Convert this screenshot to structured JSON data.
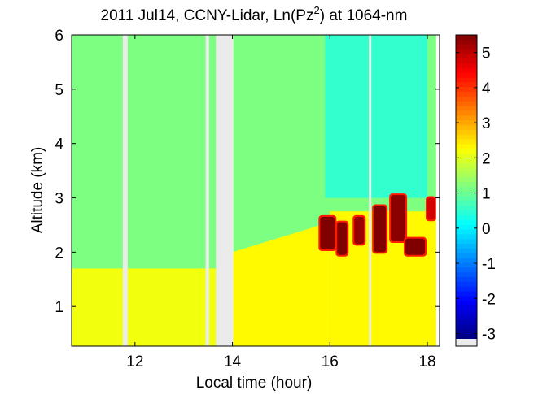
{
  "chart_data": {
    "type": "heatmap",
    "title": {
      "prefix": "2011 Jul14, CCNY-Lidar, Ln(Pz",
      "superscript": "2",
      "suffix": ") at 1064-nm"
    },
    "xlabel": "Local time (hour)",
    "ylabel": "Altitude (km)",
    "xlim": [
      10.7,
      18.25
    ],
    "ylim": [
      0.27,
      6.0
    ],
    "x_ticks": [
      "12",
      "14",
      "16",
      "18"
    ],
    "x_tick_values": [
      12,
      14,
      16,
      18
    ],
    "y_ticks": [
      "1",
      "2",
      "3",
      "4",
      "5",
      "6"
    ],
    "y_tick_values": [
      1,
      2,
      3,
      4,
      5,
      6
    ],
    "colorbar": {
      "colormap": "jet",
      "min": -3.15,
      "max": 5.5,
      "ticks": [
        "5",
        "4",
        "3",
        "2",
        "1",
        "0",
        "-1",
        "-2",
        "-3"
      ],
      "tick_values": [
        5,
        4,
        3,
        2,
        1,
        0,
        -1,
        -2,
        -3
      ],
      "missing_color": "#ebebeb"
    },
    "missing_data_intervals": [
      [
        11.75,
        11.85
      ],
      [
        13.45,
        13.52
      ],
      [
        13.66,
        14.02
      ],
      [
        16.8,
        16.85
      ]
    ],
    "data_end_hour": 18.18,
    "background_value": 1.15,
    "layers": [
      {
        "name": "near-surface",
        "alt_bottom": 0.27,
        "alt_top": 0.75,
        "value": 2.7
      },
      {
        "name": "boundary-layer-early",
        "x_range": [
          10.7,
          14.0
        ],
        "alt_top": 1.7,
        "value": 2.15
      },
      {
        "name": "boundary-layer-growing",
        "x_range": [
          14.0,
          16.0
        ],
        "alt_top_start": 2.0,
        "alt_top_end": 2.55,
        "value": 2.3
      },
      {
        "name": "boundary-layer-late",
        "x_range": [
          16.0,
          18.18
        ],
        "alt_top": 2.75,
        "value": 2.3
      },
      {
        "name": "clear-air-noise",
        "x_range": [
          15.9,
          18.0
        ],
        "alt_bottom": 3.0,
        "alt_top": 6.0,
        "value": 0.4
      }
    ],
    "cloud_patches": [
      {
        "x_range": [
          15.8,
          16.1
        ],
        "alt_range": [
          2.05,
          2.65
        ],
        "value": 5.5
      },
      {
        "x_range": [
          16.15,
          16.35
        ],
        "alt_range": [
          1.95,
          2.55
        ],
        "value": 5.5
      },
      {
        "x_range": [
          16.5,
          16.7
        ],
        "alt_range": [
          2.15,
          2.65
        ],
        "value": 5.3
      },
      {
        "x_range": [
          16.9,
          17.15
        ],
        "alt_range": [
          2.0,
          2.85
        ],
        "value": 5.5
      },
      {
        "x_range": [
          17.25,
          17.55
        ],
        "alt_range": [
          2.2,
          3.05
        ],
        "value": 5.4
      },
      {
        "x_range": [
          17.55,
          17.95
        ],
        "alt_range": [
          1.95,
          2.25
        ],
        "value": 5.5
      },
      {
        "x_range": [
          18.0,
          18.15
        ],
        "alt_range": [
          2.6,
          3.0
        ],
        "value": 4.8
      }
    ]
  }
}
